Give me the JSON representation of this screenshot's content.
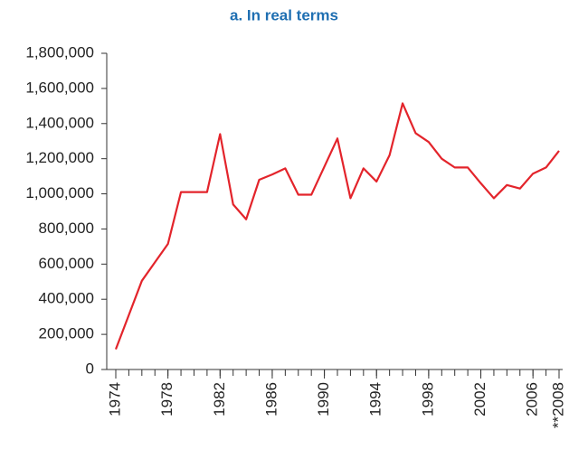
{
  "chart_data": {
    "type": "line",
    "title": "a. In real terms",
    "x": [
      1974,
      1975,
      1976,
      1977,
      1978,
      1979,
      1980,
      1981,
      1982,
      1983,
      1984,
      1985,
      1986,
      1987,
      1988,
      1989,
      1990,
      1991,
      1992,
      1993,
      1994,
      1995,
      1996,
      1997,
      1998,
      1999,
      2000,
      2001,
      2002,
      2003,
      2004,
      2005,
      2006,
      2007,
      2008
    ],
    "series": [
      {
        "name": "In real terms",
        "color": "#e3242b",
        "values": [
          115000,
          310000,
          505000,
          610000,
          715000,
          1010000,
          1010000,
          1010000,
          1340000,
          940000,
          855000,
          1080000,
          1110000,
          1145000,
          995000,
          995000,
          1155000,
          1315000,
          975000,
          1145000,
          1070000,
          1220000,
          1515000,
          1345000,
          1295000,
          1200000,
          1150000,
          1150000,
          1060000,
          975000,
          1050000,
          1030000,
          1115000,
          1150000,
          1245000
        ]
      }
    ],
    "xlim": [
      1974,
      2008
    ],
    "xticks": [
      1974,
      1978,
      1982,
      1986,
      1990,
      1994,
      1998,
      2002,
      2006,
      {
        "value": 2008,
        "label": "**2008"
      }
    ],
    "ylim": [
      0,
      1800000
    ],
    "yticks": [
      0,
      {
        "value": 200000,
        "label": "200,000"
      },
      {
        "value": 400000,
        "label": "400,000"
      },
      {
        "value": 600000,
        "label": "600,000"
      },
      {
        "value": 800000,
        "label": "800,000"
      },
      {
        "value": 1000000,
        "label": "1,000,000"
      },
      {
        "value": 1200000,
        "label": "1,200,000"
      },
      {
        "value": 1400000,
        "label": "1,400,000"
      },
      {
        "value": 1600000,
        "label": "1,600,000"
      },
      {
        "value": 1800000,
        "label": "1,800,000"
      }
    ]
  }
}
